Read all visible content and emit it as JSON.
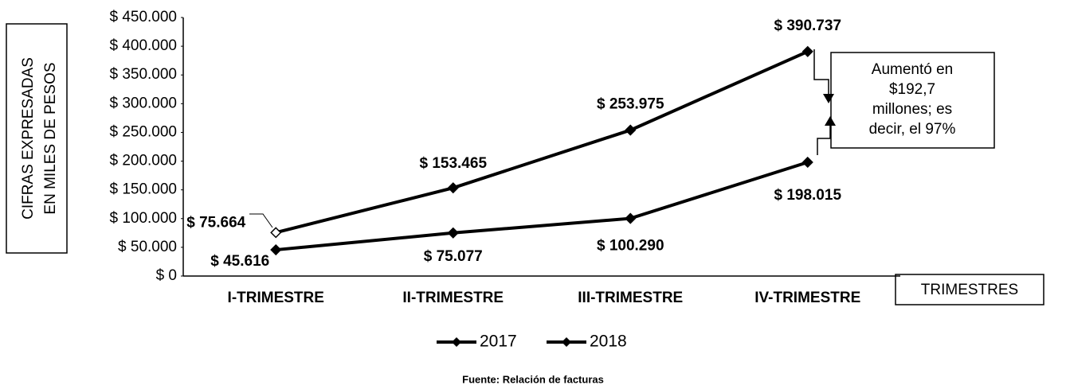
{
  "chart_data": {
    "type": "line",
    "y_label": [
      "CIFRAS EXPRESADAS",
      "EN MILES DE PESOS"
    ],
    "x_label": "TRIMESTRES",
    "categories": [
      "I-TRIMESTRE",
      "II-TRIMESTRE",
      "III-TRIMESTRE",
      "IV-TRIMESTRE"
    ],
    "series": [
      {
        "name": "2017",
        "color": "#000000",
        "values": [
          45616,
          75077,
          100290,
          198015
        ],
        "value_labels": [
          "$ 45.616",
          "$ 75.077",
          "$ 100.290",
          "$ 198.015"
        ]
      },
      {
        "name": "2018",
        "color": "#000000",
        "values": [
          75664,
          153465,
          253975,
          390737
        ],
        "value_labels": [
          "$ 75.664",
          "$ 153.465",
          "$ 253.975",
          "$ 390.737"
        ]
      }
    ],
    "ylim": [
      0,
      450000
    ],
    "yticks": [
      {
        "value": 0,
        "label": "$ 0"
      },
      {
        "value": 50000,
        "label": "$ 50.000"
      },
      {
        "value": 100000,
        "label": "$ 100.000"
      },
      {
        "value": 150000,
        "label": "$ 150.000"
      },
      {
        "value": 200000,
        "label": "$ 200.000"
      },
      {
        "value": 250000,
        "label": "$ 250.000"
      },
      {
        "value": 300000,
        "label": "$ 300.000"
      },
      {
        "value": 350000,
        "label": "$ 350.000"
      },
      {
        "value": 400000,
        "label": "$ 400.000"
      },
      {
        "value": 450000,
        "label": "$ 450.000"
      }
    ],
    "annotation": [
      "Aumentó en",
      "$192,7",
      "millones; es",
      "decir, el 97%"
    ],
    "source": "Fuente: Relación de facturas",
    "legend": "bottom"
  }
}
